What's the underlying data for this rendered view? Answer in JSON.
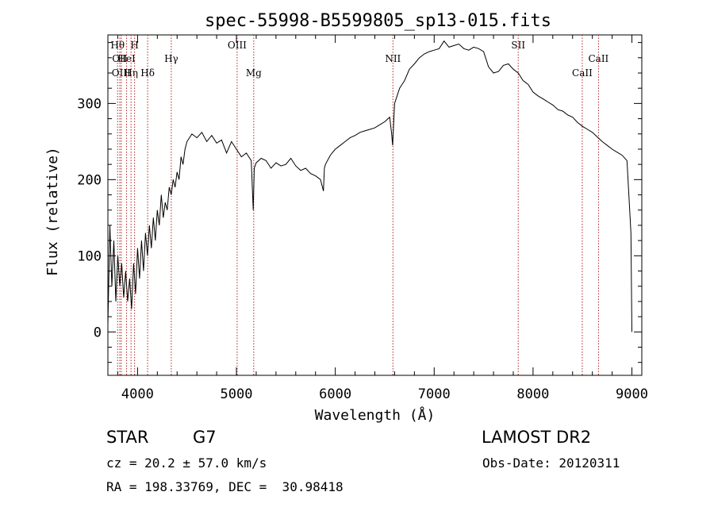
{
  "chart_data": {
    "type": "line",
    "title": "spec-55998-B5599805_sp13-015.fits",
    "xlabel": "Wavelength (Å)",
    "ylabel": "Flux (relative)",
    "xlim": [
      3700,
      9100
    ],
    "ylim": [
      -57,
      390
    ],
    "x_ticks": [
      4000,
      5000,
      6000,
      7000,
      8000,
      9000
    ],
    "y_ticks": [
      0,
      100,
      200,
      300
    ],
    "grid": false,
    "series": [
      {
        "x": [
          3700,
          3720,
          3740,
          3760,
          3780,
          3800,
          3820,
          3840,
          3860,
          3880,
          3900,
          3920,
          3940,
          3960,
          3980,
          4000,
          4020,
          4040,
          4060,
          4080,
          4100,
          4120,
          4140,
          4160,
          4180,
          4200,
          4220,
          4240,
          4260,
          4280,
          4300,
          4320,
          4340,
          4360,
          4380,
          4400,
          4420,
          4440,
          4460,
          4480,
          4500,
          4550,
          4600,
          4650,
          4700,
          4750,
          4800,
          4850,
          4900,
          4950,
          5000,
          5050,
          5100,
          5150,
          5170,
          5180,
          5200,
          5250,
          5300,
          5350,
          5400,
          5450,
          5500,
          5550,
          5600,
          5650,
          5700,
          5750,
          5800,
          5850,
          5880,
          5890,
          5900,
          5950,
          6000,
          6050,
          6100,
          6150,
          6200,
          6250,
          6300,
          6350,
          6400,
          6450,
          6500,
          6550,
          6570,
          6580,
          6600,
          6650,
          6700,
          6750,
          6800,
          6850,
          6900,
          6950,
          7000,
          7050,
          7100,
          7150,
          7200,
          7250,
          7300,
          7350,
          7400,
          7450,
          7500,
          7550,
          7600,
          7650,
          7700,
          7750,
          7800,
          7850,
          7900,
          7950,
          8000,
          8050,
          8100,
          8150,
          8200,
          8250,
          8300,
          8350,
          8400,
          8450,
          8500,
          8550,
          8600,
          8650,
          8700,
          8750,
          8800,
          8850,
          8900,
          8950,
          8990,
          9000
        ],
        "y": [
          10,
          140,
          60,
          120,
          40,
          100,
          60,
          90,
          45,
          80,
          40,
          70,
          30,
          90,
          50,
          110,
          70,
          120,
          80,
          130,
          100,
          140,
          110,
          150,
          120,
          160,
          140,
          180,
          150,
          170,
          160,
          190,
          180,
          200,
          190,
          210,
          200,
          230,
          220,
          240,
          250,
          260,
          255,
          262,
          250,
          258,
          248,
          252,
          235,
          250,
          240,
          230,
          235,
          225,
          160,
          215,
          222,
          228,
          225,
          215,
          222,
          218,
          220,
          228,
          218,
          212,
          215,
          208,
          205,
          200,
          185,
          215,
          220,
          232,
          240,
          245,
          250,
          255,
          258,
          262,
          264,
          266,
          268,
          272,
          276,
          282,
          260,
          245,
          300,
          320,
          330,
          345,
          352,
          360,
          365,
          368,
          370,
          372,
          382,
          374,
          376,
          378,
          372,
          370,
          374,
          372,
          368,
          348,
          340,
          342,
          350,
          352,
          345,
          340,
          330,
          325,
          315,
          310,
          306,
          302,
          298,
          292,
          290,
          285,
          282,
          275,
          270,
          266,
          262,
          256,
          250,
          245,
          240,
          236,
          232,
          225,
          130,
          0
        ]
      }
    ],
    "lines": [
      {
        "wavelength": 3798,
        "label": "Hθ"
      },
      {
        "wavelength": 3820,
        "label": "OII"
      },
      {
        "wavelength": 3835,
        "label": "OIII"
      },
      {
        "wavelength": 3889,
        "label": "HeI"
      },
      {
        "wavelength": 3934,
        "label": "Hη"
      },
      {
        "wavelength": 3970,
        "label": "H"
      },
      {
        "wavelength": 4102,
        "label": "Hδ"
      },
      {
        "wavelength": 4341,
        "label": "Hγ"
      },
      {
        "wavelength": 5007,
        "label": "OIII"
      },
      {
        "wavelength": 5175,
        "label": "Mg"
      },
      {
        "wavelength": 6583,
        "label": "NII"
      },
      {
        "wavelength": 7850,
        "label": "SII"
      },
      {
        "wavelength": 8498,
        "label": "CaII"
      },
      {
        "wavelength": 8662,
        "label": "CaII"
      }
    ]
  },
  "info": {
    "object_class": "STAR",
    "subclass": "G7",
    "survey": "LAMOST DR2",
    "redshift": "cz = 20.2 ± 57.0 km/s",
    "obs_date": "Obs-Date: 20120311",
    "coords": "RA = 198.33769, DEC =  30.98418"
  }
}
